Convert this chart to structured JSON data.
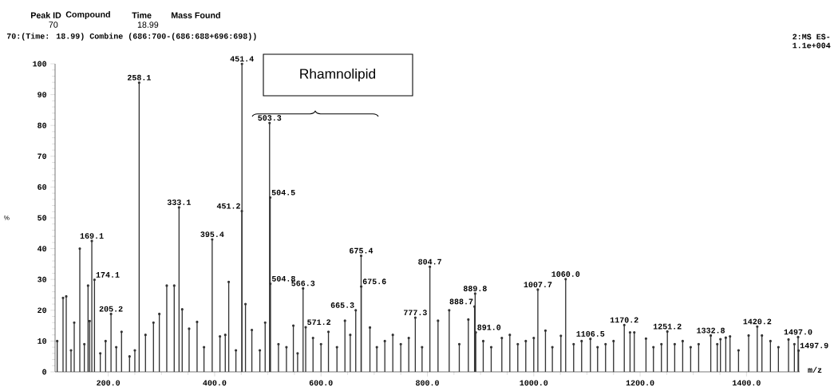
{
  "chart_data": {
    "type": "lollipop",
    "marker": "circle",
    "xlabel": "m/z",
    "ylabel": "%",
    "annotations": [
      "Peak ID",
      "Compound",
      "Time",
      "Mass Found",
      "70",
      "18.99",
      "70:(Time: 18.99) Combine (686:700-(686:688+696:698))",
      "2:MS ES-",
      "1.1e+004",
      "Rhamnolipid",
      {
        "text": "169.1",
        "x": 169.1,
        "y": 42.5
      },
      {
        "text": "174.1",
        "x": 174.1,
        "y": 29.9
      },
      {
        "text": "205.2",
        "x": 205.2,
        "y": 18.8
      },
      {
        "text": "258.1",
        "x": 258.1,
        "y": 93.9
      },
      {
        "text": "333.1",
        "x": 333.1,
        "y": 53.4
      },
      {
        "text": "395.4",
        "x": 395.4,
        "y": 43
      },
      {
        "text": "451.2",
        "x": 451.2,
        "y": 52.2
      },
      {
        "text": "451.4",
        "x": 451.4,
        "y": 100
      },
      {
        "text": "503.3",
        "x": 503.3,
        "y": 80.8
      },
      {
        "text": "504.5",
        "x": 504.5,
        "y": 56.6
      },
      {
        "text": "504.8",
        "x": 504.8,
        "y": 28.6
      },
      {
        "text": "566.3",
        "x": 566.3,
        "y": 27.1
      },
      {
        "text": "571.2",
        "x": 571.2,
        "y": 14.5
      },
      {
        "text": "665.3",
        "x": 665.3,
        "y": 20
      },
      {
        "text": "675.4",
        "x": 675.4,
        "y": 37.7
      },
      {
        "text": "675.6",
        "x": 675.6,
        "y": 27.7
      },
      {
        "text": "777.3",
        "x": 777.3,
        "y": 17.6
      },
      {
        "text": "804.7",
        "x": 804.7,
        "y": 34.1
      },
      {
        "text": "888.7",
        "x": 888.7,
        "y": 21.2
      },
      {
        "text": "889.8",
        "x": 889.8,
        "y": 25.4
      },
      {
        "text": "891.0",
        "x": 891.0,
        "y": 12.8
      },
      {
        "text": "1007.7",
        "x": 1007.7,
        "y": 26.7
      },
      {
        "text": "1060.0",
        "x": 1060.0,
        "y": 30.1
      },
      {
        "text": "1106.5",
        "x": 1106.5,
        "y": 10.7
      },
      {
        "text": "1170.2",
        "x": 1170.2,
        "y": 15.2
      },
      {
        "text": "1251.2",
        "x": 1251.2,
        "y": 13.1
      },
      {
        "text": "1332.8",
        "x": 1332.8,
        "y": 11.8
      },
      {
        "text": "1420.2",
        "x": 1420.2,
        "y": 14.7
      },
      {
        "text": "1497.0",
        "x": 1497.0,
        "y": 11.3
      },
      {
        "text": "1497.9",
        "x": 1497.9,
        "y": 6.9
      }
    ],
    "x": [
      104,
      115,
      121,
      130,
      136,
      146.5,
      155,
      162,
      165,
      169.1,
      174.1,
      185,
      195,
      205.2,
      215,
      225,
      240,
      250,
      258.1,
      270,
      285,
      296,
      310,
      324,
      333.1,
      339,
      352,
      367,
      380,
      395.4,
      410,
      420,
      426.5,
      440,
      451.2,
      451.4,
      458,
      470,
      485,
      495,
      503.3,
      504.5,
      504.8,
      520,
      535,
      548,
      556,
      566.3,
      571.2,
      585,
      600,
      614,
      630,
      645,
      655,
      665.3,
      675.4,
      675.6,
      692,
      705,
      720,
      735,
      750,
      765,
      777.3,
      790,
      804.7,
      820,
      841,
      860,
      877,
      888.7,
      889.8,
      891.0,
      905,
      920,
      940,
      955,
      970,
      985,
      1000,
      1007.7,
      1022,
      1035,
      1051,
      1060.0,
      1075,
      1090,
      1106.5,
      1120,
      1135,
      1150,
      1170.2,
      1181,
      1189,
      1211,
      1225,
      1240,
      1251.2,
      1265,
      1280,
      1295,
      1310,
      1332.8,
      1345,
      1351,
      1361,
      1369,
      1385,
      1404,
      1420.2,
      1429,
      1445,
      1460,
      1479,
      1490,
      1497.0,
      1497.9
    ],
    "values": [
      10,
      24,
      24.5,
      7,
      16,
      40,
      9,
      28,
      16.5,
      42.5,
      29.9,
      6,
      10,
      18.8,
      8,
      13,
      5,
      7,
      93.9,
      12,
      16,
      18.8,
      28,
      28,
      53.4,
      20.3,
      14,
      16.2,
      8,
      43,
      11.5,
      12,
      29.2,
      7,
      52.2,
      100,
      22,
      13.6,
      7,
      16,
      80.8,
      56.6,
      28.6,
      9,
      8,
      15,
      6,
      27.1,
      14.5,
      11,
      9,
      13,
      8,
      16.6,
      12,
      20,
      37.7,
      27.7,
      14.4,
      8,
      10,
      12,
      9,
      11,
      17.6,
      8,
      34.1,
      16.6,
      20,
      9,
      17,
      21.2,
      25.4,
      12.8,
      10,
      8,
      11,
      12,
      9,
      10,
      11,
      26.7,
      13.4,
      8,
      11.7,
      30.1,
      9,
      10,
      10.7,
      8,
      9,
      10,
      15.2,
      12.8,
      12.8,
      10.8,
      8,
      9,
      13.1,
      9,
      10,
      8,
      9,
      11.8,
      9,
      10.6,
      11.1,
      11.5,
      7,
      11.8,
      14.7,
      11.8,
      10,
      8,
      10.5,
      9,
      11.3,
      6.9
    ],
    "color": "#333333",
    "xlim": [
      100,
      1500
    ],
    "xticks": [
      {
        "value": 200,
        "label": "200.0"
      },
      {
        "value": 400,
        "label": "400.0"
      },
      {
        "value": 600,
        "label": "600.0"
      },
      {
        "value": 800,
        "label": "800.0"
      },
      {
        "value": 1000,
        "label": "1000.0"
      },
      {
        "value": 1200,
        "label": "1200.0"
      },
      {
        "value": 1400,
        "label": "1400.0"
      }
    ],
    "ylim": [
      0,
      100
    ],
    "yticks": [
      0,
      10,
      20,
      30,
      40,
      50,
      60,
      70,
      80,
      90,
      100
    ]
  }
}
